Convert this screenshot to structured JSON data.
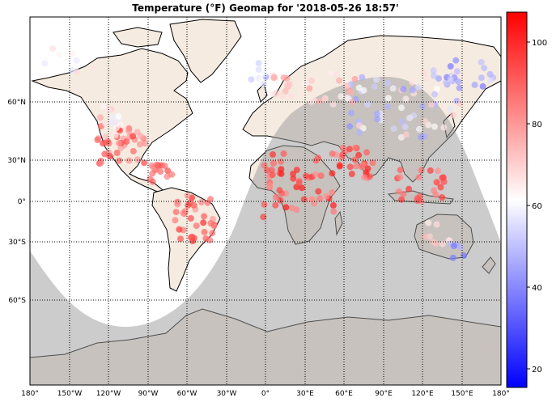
{
  "title": "Temperature (°F) Geomap for '2018-05-26 18:57'",
  "longitude_labels": [
    "180°",
    "150°W",
    "120°W",
    "90°W",
    "60°W",
    "30°W",
    "0°",
    "30°E",
    "60°E",
    "90°E",
    "120°E",
    "150°E",
    "180°"
  ],
  "latitude_labels": [
    "60°N",
    "30°N",
    "0°",
    "30°S",
    "60°S"
  ],
  "colorbar": {
    "ticks": [
      "100",
      "80",
      "60",
      "40",
      "20"
    ],
    "min": 15,
    "max": 107,
    "colors": {
      "low": "#0000ff",
      "mid": "#ffffff",
      "high": "#ff0000"
    }
  },
  "colors": {
    "land": "#f5ebe0",
    "night_shade": "#999999",
    "coast": "#000000",
    "ocean": "#ffffff"
  }
}
